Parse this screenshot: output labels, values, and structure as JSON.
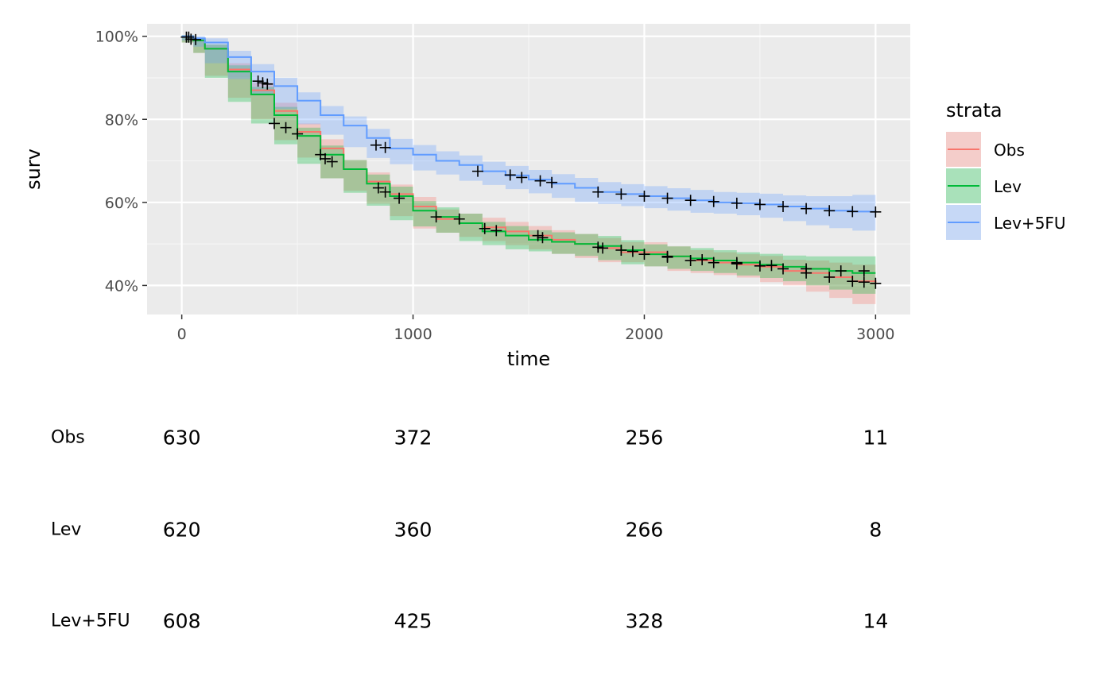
{
  "chart_data": {
    "type": "line",
    "title": "",
    "xlabel": "time",
    "ylabel": "surv",
    "xlim": [
      -150,
      3150
    ],
    "ylim": [
      0.33,
      1.03
    ],
    "x_ticks": [
      0,
      1000,
      2000,
      3000
    ],
    "x_tick_labels": [
      "0",
      "1000",
      "2000",
      "3000"
    ],
    "y_ticks": [
      0.4,
      0.6,
      0.8,
      1.0
    ],
    "y_tick_labels": [
      "40%",
      "60%",
      "80%",
      "100%"
    ],
    "grid": true,
    "legend": {
      "title": "strata",
      "position": "right"
    },
    "series": [
      {
        "name": "Obs",
        "color": "#F8766D",
        "points": [
          [
            0,
            1.0
          ],
          [
            50,
            0.99
          ],
          [
            100,
            0.97
          ],
          [
            200,
            0.92
          ],
          [
            300,
            0.87
          ],
          [
            400,
            0.82
          ],
          [
            500,
            0.77
          ],
          [
            600,
            0.73
          ],
          [
            700,
            0.68
          ],
          [
            800,
            0.65
          ],
          [
            900,
            0.62
          ],
          [
            1000,
            0.59
          ],
          [
            1100,
            0.56
          ],
          [
            1200,
            0.55
          ],
          [
            1300,
            0.54
          ],
          [
            1400,
            0.53
          ],
          [
            1500,
            0.52
          ],
          [
            1600,
            0.51
          ],
          [
            1700,
            0.5
          ],
          [
            1800,
            0.49
          ],
          [
            1900,
            0.48
          ],
          [
            2000,
            0.48
          ],
          [
            2100,
            0.47
          ],
          [
            2200,
            0.46
          ],
          [
            2300,
            0.455
          ],
          [
            2400,
            0.45
          ],
          [
            2500,
            0.445
          ],
          [
            2600,
            0.435
          ],
          [
            2700,
            0.43
          ],
          [
            2800,
            0.42
          ],
          [
            2900,
            0.41
          ],
          [
            3000,
            0.405
          ]
        ],
        "ci_halfwidth": [
          0.0,
          0.005,
          0.01,
          0.015,
          0.018,
          0.02,
          0.02,
          0.022,
          0.022,
          0.022,
          0.023,
          0.023,
          0.023,
          0.023,
          0.023,
          0.023,
          0.023,
          0.023,
          0.024,
          0.024,
          0.024,
          0.024,
          0.024,
          0.025,
          0.025,
          0.025,
          0.026,
          0.027,
          0.03,
          0.035,
          0.04,
          0.05
        ],
        "censored": [
          [
            30,
            0.998
          ],
          [
            60,
            0.992
          ],
          [
            1540,
            0.52
          ],
          [
            1560,
            0.515
          ],
          [
            1820,
            0.49
          ],
          [
            1900,
            0.485
          ],
          [
            2000,
            0.475
          ],
          [
            2100,
            0.47
          ],
          [
            2200,
            0.46
          ],
          [
            2300,
            0.455
          ],
          [
            2400,
            0.452
          ],
          [
            2500,
            0.447
          ],
          [
            2600,
            0.44
          ],
          [
            2700,
            0.43
          ],
          [
            2800,
            0.42
          ],
          [
            2900,
            0.41
          ],
          [
            2950,
            0.408
          ],
          [
            3000,
            0.405
          ]
        ]
      },
      {
        "name": "Lev",
        "color": "#00BA38",
        "points": [
          [
            0,
            1.0
          ],
          [
            50,
            0.99
          ],
          [
            100,
            0.97
          ],
          [
            200,
            0.915
          ],
          [
            300,
            0.86
          ],
          [
            400,
            0.81
          ],
          [
            500,
            0.76
          ],
          [
            600,
            0.715
          ],
          [
            700,
            0.68
          ],
          [
            800,
            0.645
          ],
          [
            900,
            0.615
          ],
          [
            1000,
            0.58
          ],
          [
            1100,
            0.565
          ],
          [
            1200,
            0.55
          ],
          [
            1300,
            0.53
          ],
          [
            1400,
            0.52
          ],
          [
            1500,
            0.51
          ],
          [
            1600,
            0.505
          ],
          [
            1700,
            0.5
          ],
          [
            1800,
            0.495
          ],
          [
            1900,
            0.485
          ],
          [
            2000,
            0.475
          ],
          [
            2100,
            0.47
          ],
          [
            2200,
            0.465
          ],
          [
            2300,
            0.46
          ],
          [
            2400,
            0.455
          ],
          [
            2500,
            0.45
          ],
          [
            2600,
            0.445
          ],
          [
            2700,
            0.44
          ],
          [
            2800,
            0.435
          ],
          [
            2900,
            0.43
          ],
          [
            3000,
            0.43
          ]
        ],
        "ci_halfwidth": [
          0.0,
          0.005,
          0.01,
          0.015,
          0.018,
          0.02,
          0.02,
          0.022,
          0.022,
          0.022,
          0.023,
          0.023,
          0.023,
          0.023,
          0.023,
          0.023,
          0.023,
          0.023,
          0.024,
          0.024,
          0.024,
          0.024,
          0.024,
          0.025,
          0.025,
          0.025,
          0.026,
          0.027,
          0.03,
          0.035,
          0.04,
          0.05
        ],
        "censored": [
          [
            400,
            0.79
          ],
          [
            450,
            0.78
          ],
          [
            500,
            0.765
          ],
          [
            600,
            0.715
          ],
          [
            620,
            0.705
          ],
          [
            650,
            0.698
          ],
          [
            850,
            0.635
          ],
          [
            880,
            0.625
          ],
          [
            940,
            0.61
          ],
          [
            1100,
            0.565
          ],
          [
            1200,
            0.56
          ],
          [
            1310,
            0.537
          ],
          [
            1360,
            0.532
          ],
          [
            1800,
            0.492
          ],
          [
            1950,
            0.482
          ],
          [
            2100,
            0.468
          ],
          [
            2250,
            0.462
          ],
          [
            2400,
            0.455
          ],
          [
            2550,
            0.448
          ],
          [
            2700,
            0.44
          ],
          [
            2850,
            0.435
          ],
          [
            2950,
            0.435
          ]
        ]
      },
      {
        "name": "Lev+5FU",
        "color": "#619CFF",
        "points": [
          [
            0,
            1.0
          ],
          [
            50,
            0.995
          ],
          [
            100,
            0.985
          ],
          [
            200,
            0.95
          ],
          [
            300,
            0.915
          ],
          [
            400,
            0.88
          ],
          [
            500,
            0.845
          ],
          [
            600,
            0.81
          ],
          [
            700,
            0.785
          ],
          [
            800,
            0.755
          ],
          [
            900,
            0.73
          ],
          [
            1000,
            0.715
          ],
          [
            1100,
            0.7
          ],
          [
            1200,
            0.69
          ],
          [
            1300,
            0.675
          ],
          [
            1400,
            0.665
          ],
          [
            1500,
            0.655
          ],
          [
            1600,
            0.645
          ],
          [
            1700,
            0.635
          ],
          [
            1800,
            0.625
          ],
          [
            1900,
            0.62
          ],
          [
            2000,
            0.615
          ],
          [
            2100,
            0.61
          ],
          [
            2200,
            0.605
          ],
          [
            2300,
            0.6
          ],
          [
            2400,
            0.598
          ],
          [
            2500,
            0.595
          ],
          [
            2600,
            0.59
          ],
          [
            2700,
            0.585
          ],
          [
            2800,
            0.58
          ],
          [
            2900,
            0.578
          ],
          [
            3000,
            0.577
          ]
        ],
        "ci_halfwidth": [
          0.0,
          0.005,
          0.01,
          0.015,
          0.018,
          0.02,
          0.02,
          0.022,
          0.022,
          0.022,
          0.023,
          0.023,
          0.023,
          0.023,
          0.023,
          0.023,
          0.023,
          0.023,
          0.024,
          0.024,
          0.024,
          0.024,
          0.024,
          0.025,
          0.025,
          0.025,
          0.026,
          0.027,
          0.03,
          0.035,
          0.04,
          0.045
        ],
        "censored": [
          [
            20,
            0.998
          ],
          [
            40,
            0.993
          ],
          [
            330,
            0.892
          ],
          [
            350,
            0.888
          ],
          [
            370,
            0.885
          ],
          [
            840,
            0.738
          ],
          [
            880,
            0.732
          ],
          [
            1280,
            0.675
          ],
          [
            1420,
            0.666
          ],
          [
            1470,
            0.66
          ],
          [
            1550,
            0.652
          ],
          [
            1600,
            0.648
          ],
          [
            1800,
            0.625
          ],
          [
            1900,
            0.62
          ],
          [
            2000,
            0.615
          ],
          [
            2100,
            0.61
          ],
          [
            2200,
            0.605
          ],
          [
            2300,
            0.602
          ],
          [
            2400,
            0.598
          ],
          [
            2500,
            0.595
          ],
          [
            2600,
            0.59
          ],
          [
            2700,
            0.585
          ],
          [
            2800,
            0.58
          ],
          [
            2900,
            0.578
          ],
          [
            3000,
            0.577
          ]
        ]
      }
    ]
  },
  "risk_table": {
    "times": [
      "0",
      "1000",
      "2000",
      "3000"
    ],
    "rows": [
      {
        "label": "Obs",
        "counts": [
          "630",
          "372",
          "256",
          "11"
        ]
      },
      {
        "label": "Lev",
        "counts": [
          "620",
          "360",
          "266",
          "8"
        ]
      },
      {
        "label": "Lev+5FU",
        "counts": [
          "608",
          "425",
          "328",
          "14"
        ]
      }
    ]
  }
}
